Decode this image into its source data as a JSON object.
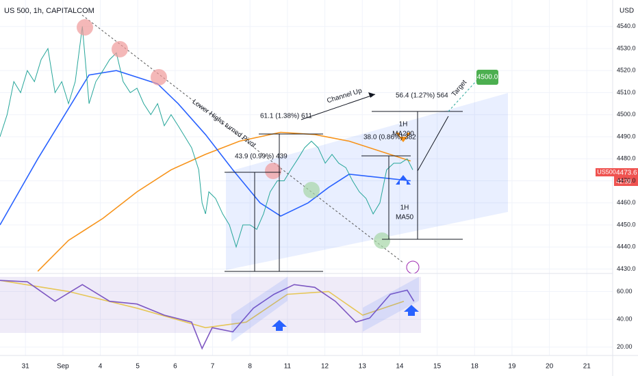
{
  "chart_data": [
    {
      "type": "line",
      "title": "US 500, 1h, CAPITALCOM",
      "currency": "USD",
      "xlim": [
        -0.68,
        15.69
      ],
      "ylim": [
        4428,
        4552
      ],
      "yticks": [
        {
          "value": 4540,
          "label": "4540.0"
        },
        {
          "value": 4530,
          "label": "4530.0"
        },
        {
          "value": 4520,
          "label": "4520.0"
        },
        {
          "value": 4510,
          "label": "4510.0"
        },
        {
          "value": 4500,
          "label": "4500.0"
        },
        {
          "value": 4490,
          "label": "4490.0"
        },
        {
          "value": 4480,
          "label": "4480.0"
        },
        {
          "value": 4470,
          "label": "4470.0"
        },
        {
          "value": 4460,
          "label": "4460.0"
        },
        {
          "value": 4450,
          "label": "4450.0"
        },
        {
          "value": 4440,
          "label": "4440.0"
        },
        {
          "value": 4430,
          "label": "4430.0"
        }
      ],
      "grid": true,
      "series": [
        {
          "color": "#26a69a",
          "x": [
            -0.68,
            -0.49,
            -0.31,
            -0.13,
            0.05,
            0.24,
            0.42,
            0.6,
            0.79,
            0.97,
            1.15,
            1.33,
            1.52,
            1.7,
            1.88,
            2.07,
            2.25,
            2.43,
            2.61,
            2.8,
            2.98,
            3.16,
            3.35,
            3.53,
            3.71,
            3.89,
            4.08,
            4.26,
            4.44,
            4.63,
            4.72,
            4.81,
            4.9,
            5.08,
            5.27,
            5.45,
            5.63,
            5.81,
            6.0,
            6.18,
            6.36,
            6.54,
            6.73,
            6.91,
            7.09,
            7.28,
            7.46,
            7.64,
            7.82,
            8.01,
            8.19,
            8.37,
            8.56,
            8.74,
            8.92,
            9.1,
            9.29,
            9.47,
            9.65,
            9.84,
            10.02,
            10.2,
            10.35
          ],
          "values": [
            4490,
            4500,
            4515,
            4510,
            4520,
            4515,
            4525,
            4530,
            4510,
            4515,
            4505,
            4515,
            4540,
            4505,
            4515,
            4520,
            4525,
            4528,
            4515,
            4510,
            4512,
            4505,
            4500,
            4505,
            4495,
            4500,
            4495,
            4490,
            4485,
            4475,
            4460,
            4455,
            4465,
            4462,
            4455,
            4450,
            4440,
            4450,
            4450,
            4448,
            4455,
            4465,
            4470,
            4470,
            4475,
            4480,
            4485,
            4488,
            4485,
            4478,
            4482,
            4478,
            4476,
            4470,
            4465,
            4462,
            4455,
            4460,
            4475,
            4478,
            4478,
            4480,
            4475
          ]
        },
        {
          "color": "#2962ff",
          "x": [
            -0.68,
            0.33,
            1.7,
            2.43,
            3.53,
            4.08,
            4.81,
            5.54,
            6.27,
            6.82,
            7.55,
            8.1,
            8.65,
            9.2,
            9.75,
            10.29
          ],
          "values": [
            4450,
            4480,
            4518,
            4520,
            4514,
            4505,
            4491,
            4475,
            4460,
            4454,
            4460,
            4467,
            4473,
            4472,
            4471,
            4470
          ]
        },
        {
          "color": "#f7931a",
          "x": [
            0.33,
            1.15,
            2.07,
            2.98,
            3.89,
            4.81,
            5.72,
            6.82,
            7.73,
            8.65,
            9.56,
            10.29
          ],
          "values": [
            4429,
            4443,
            4453,
            4465,
            4475,
            4482,
            4488,
            4492,
            4491,
            4488,
            4483,
            4479
          ]
        }
      ],
      "annotations": [
        "Lower Highs turned Pivot",
        "Channel Up",
        "61.1 (1.38%) 611",
        "43.9 (0.99%) 439",
        "38.0 (0.86%) 382",
        "56.4 (1.27%) 564",
        "Target",
        "4500.0",
        "1H",
        "MA200",
        "1H",
        "MA50",
        "US500",
        "42:58"
      ],
      "last_price": 4473.6
    },
    {
      "type": "line",
      "xlim": [
        -0.68,
        15.69
      ],
      "ylim": [
        14,
        73
      ],
      "yticks": [
        {
          "value": 60,
          "label": "60.00"
        },
        {
          "value": 40,
          "label": "40.00"
        },
        {
          "value": 20,
          "label": "20.00"
        }
      ],
      "xticks": [
        {
          "value": 0,
          "label": "31"
        },
        {
          "value": 1,
          "label": "Sep"
        },
        {
          "value": 2,
          "label": "4"
        },
        {
          "value": 3,
          "label": "5"
        },
        {
          "value": 4,
          "label": "6"
        },
        {
          "value": 5,
          "label": "7"
        },
        {
          "value": 6,
          "label": "8"
        },
        {
          "value": 7,
          "label": "11"
        },
        {
          "value": 8,
          "label": "12"
        },
        {
          "value": 9,
          "label": "13"
        },
        {
          "value": 10,
          "label": "14"
        },
        {
          "value": 11,
          "label": "15"
        },
        {
          "value": 12,
          "label": "18"
        },
        {
          "value": 13,
          "label": "19"
        },
        {
          "value": 14,
          "label": "20"
        },
        {
          "value": 15,
          "label": "21"
        }
      ],
      "series": [
        {
          "color": "#7e57c2",
          "x": [
            -0.68,
            0.05,
            0.79,
            1.52,
            2.25,
            2.98,
            3.71,
            4.44,
            4.72,
            4.99,
            5.54,
            6.09,
            6.64,
            7.18,
            7.73,
            8.28,
            8.83,
            9.2,
            9.75,
            10.2,
            10.38
          ],
          "values": [
            68,
            67,
            53,
            65,
            53,
            51,
            43,
            38,
            19,
            34,
            31,
            48,
            58,
            65,
            63,
            53,
            38,
            41,
            58,
            61,
            53
          ]
        },
        {
          "color": "#f5d547",
          "x": [
            -0.68,
            1.15,
            2.98,
            4.81,
            5.9,
            7.0,
            8.1,
            9.01,
            10.11
          ],
          "values": [
            68,
            60,
            48,
            34,
            38,
            58,
            60,
            43,
            53
          ]
        }
      ]
    }
  ]
}
